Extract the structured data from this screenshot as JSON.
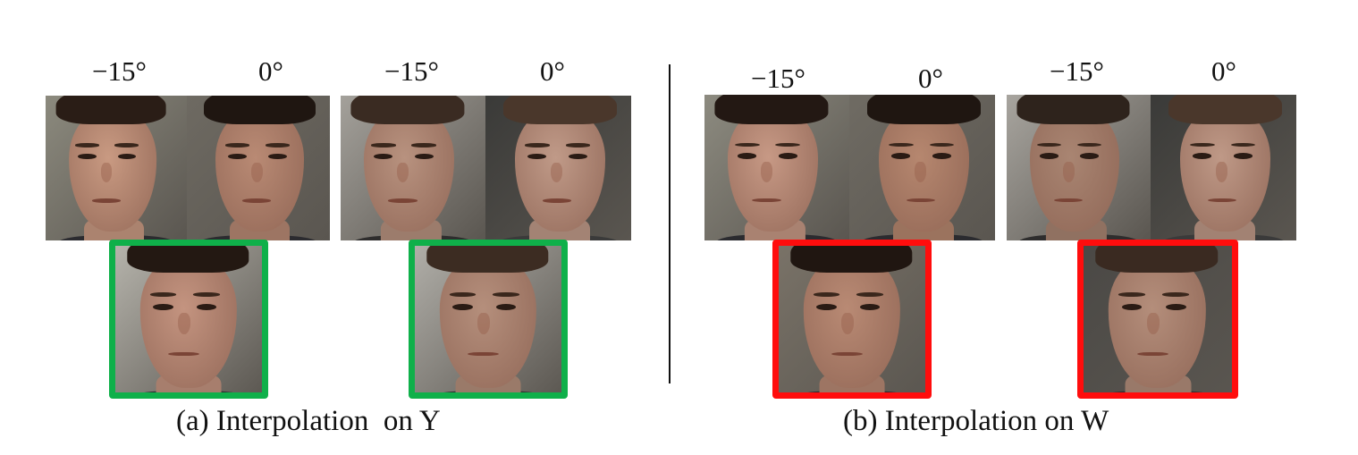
{
  "figure": {
    "panel_a": {
      "caption": "(a) Interpolation  on Y",
      "frame_color": "#0fb04a",
      "pairs": [
        {
          "angle_left": "−15°",
          "angle_right": "0°",
          "subject": "subject-1",
          "input_left": {
            "skin": "#c99a82",
            "hair": "#2a1d16",
            "bg": "#8c8a7e",
            "shirt": "#2b2b2f"
          },
          "input_right": {
            "skin": "#b98a74",
            "hair": "#1f1611",
            "bg": "#6e6a62",
            "shirt": "#2b2b2f"
          },
          "output": {
            "skin": "#c49480",
            "hair": "#231812",
            "bg": "#b8b6ae",
            "shirt": "#2b2b2f"
          }
        },
        {
          "angle_left": "−15°",
          "angle_right": "0°",
          "subject": "subject-2",
          "input_left": {
            "skin": "#b8927f",
            "hair": "#3a2b22",
            "bg": "#a4a19b",
            "shirt": "#2e2d2d"
          },
          "input_right": {
            "skin": "#c09a88",
            "hair": "#4a372b",
            "bg": "#3a3a38",
            "shirt": "#3a3a3a"
          },
          "output": {
            "skin": "#b58f7c",
            "hair": "#3c2c22",
            "bg": "#b3b1ab",
            "shirt": "#2f2f2f"
          }
        }
      ]
    },
    "panel_b": {
      "caption": "(b) Interpolation on W",
      "frame_color": "#ff0d0d",
      "pairs": [
        {
          "angle_left": "−15°",
          "angle_right": "0°",
          "subject": "subject-1",
          "input_left": {
            "skin": "#c79985",
            "hair": "#231813",
            "bg": "#8d8b80",
            "shirt": "#2b2b2f"
          },
          "input_right": {
            "skin": "#b6876f",
            "hair": "#1f1611",
            "bg": "#6f6b63",
            "shirt": "#2b2b2f"
          },
          "output": {
            "skin": "#b98a74",
            "hair": "#201611",
            "bg": "#7a7368",
            "shirt": "#2b2b2f"
          }
        },
        {
          "angle_left": "−15°",
          "angle_right": "0°",
          "subject": "subject-2",
          "input_left": {
            "skin": "#a98572",
            "hair": "#2e231c",
            "bg": "#a8a59f",
            "shirt": "#2e2d2d"
          },
          "input_right": {
            "skin": "#bf9987",
            "hair": "#4a372b",
            "bg": "#3a3a38",
            "shirt": "#3a3a3a"
          },
          "output": {
            "skin": "#b48e7b",
            "hair": "#3a2a21",
            "bg": "#4a4845",
            "shirt": "#2f2f2f"
          }
        }
      ]
    }
  }
}
